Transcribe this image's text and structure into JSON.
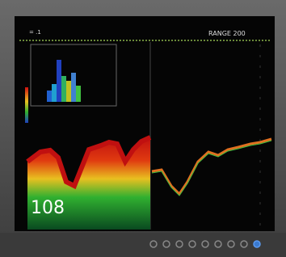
{
  "screen": {
    "range_label": "RANGE 200",
    "depth": "108"
  }
}
